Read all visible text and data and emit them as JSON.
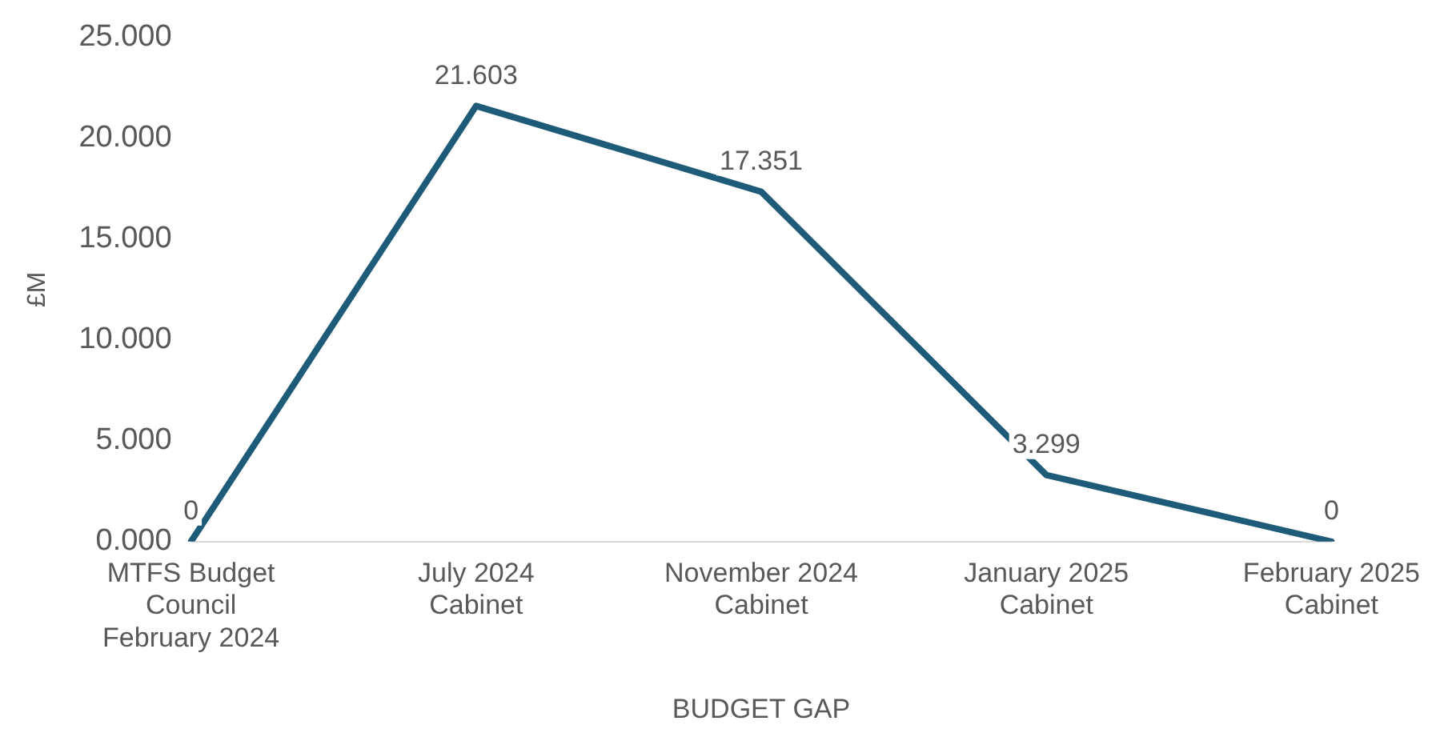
{
  "chart_data": {
    "type": "line",
    "xlabel": "BUDGET GAP",
    "ylabel": "£M",
    "categories": [
      "MTFS Budget Council February 2024",
      "July 2024 Cabinet",
      "November 2024 Cabinet",
      "January 2025 Cabinet",
      "February 2025 Cabinet"
    ],
    "series": [
      {
        "color": "#1d5b78",
        "values": [
          0,
          21.603,
          17.351,
          3.299,
          0
        ]
      }
    ],
    "ylim": [
      0,
      25
    ],
    "yticks": [
      {
        "value": 0,
        "label": "0.000"
      },
      {
        "value": 5,
        "label": "5.000"
      },
      {
        "value": 10,
        "label": "10.000"
      },
      {
        "value": 15,
        "label": "15.000"
      },
      {
        "value": 20,
        "label": "20.000"
      },
      {
        "value": 25,
        "label": "25.000"
      }
    ],
    "data_labels": true,
    "grid": false,
    "legend": false,
    "marker": "none",
    "line_style": "solid"
  }
}
